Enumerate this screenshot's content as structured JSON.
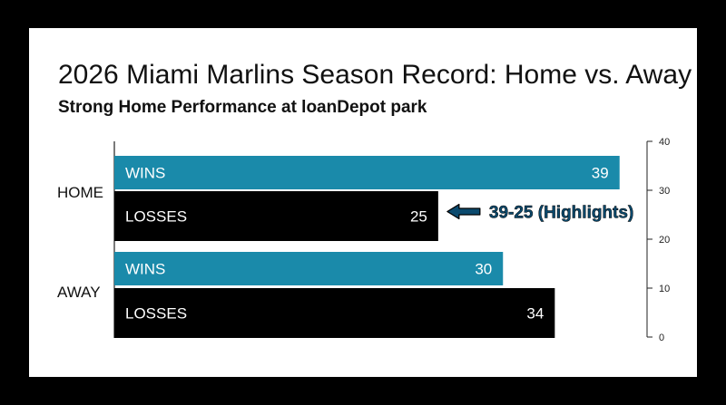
{
  "chart_data": {
    "type": "bar",
    "orientation": "horizontal",
    "title": "2026 Miami Marlins Season Record: Home vs. Away",
    "subtitle": "Strong Home Performance at loanDepot park",
    "groups": [
      {
        "label": "HOME",
        "bars": [
          {
            "label": "WINS",
            "value": 39
          },
          {
            "label": "LOSSES",
            "value": 25
          }
        ]
      },
      {
        "label": "AWAY",
        "bars": [
          {
            "label": "WINS",
            "value": 30
          },
          {
            "label": "LOSSES",
            "value": 34
          }
        ]
      }
    ],
    "xlim": [
      0,
      40
    ],
    "ticks": [
      0,
      10,
      20,
      30,
      40
    ],
    "axis_side": "right",
    "grid": false,
    "colors": {
      "WINS": "#1a8aaa",
      "LOSSES": "#000000",
      "annotation": "#0b4a6e"
    },
    "annotation": {
      "text": "39-25 (Highlights)",
      "target": "HOME LOSSES"
    }
  }
}
